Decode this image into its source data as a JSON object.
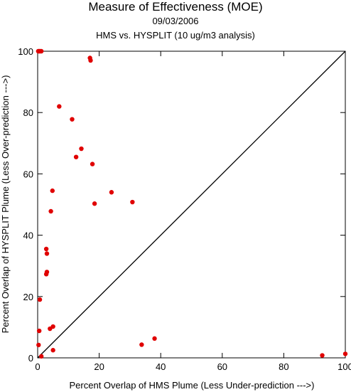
{
  "chart_data": {
    "type": "scatter",
    "title": "Measure of Effectiveness (MOE)",
    "subtitle": "09/03/2006",
    "subtitle2": "HMS vs. HYSPLIT  (10 ug/m3 analysis)",
    "xlabel": "Percent Overlap of HMS Plume (Less Under-prediction --->)",
    "ylabel": "Percent Overlap of HYSPLIT Plume (Less Over-prediction --->)",
    "xlim": [
      0,
      100
    ],
    "ylim": [
      0,
      100
    ],
    "xticks": [
      0,
      20,
      40,
      60,
      80,
      100
    ],
    "yticks": [
      0,
      20,
      40,
      60,
      80,
      100
    ],
    "grid": false,
    "diagonal": true,
    "point_color": "#e00000",
    "points": [
      {
        "x": 0.2,
        "y": 100
      },
      {
        "x": 0.5,
        "y": 100
      },
      {
        "x": 0.8,
        "y": 100
      },
      {
        "x": 1.2,
        "y": 100
      },
      {
        "x": 17.0,
        "y": 97.8
      },
      {
        "x": 17.2,
        "y": 97.0
      },
      {
        "x": 7.0,
        "y": 82.0
      },
      {
        "x": 11.2,
        "y": 77.8
      },
      {
        "x": 14.2,
        "y": 68.2
      },
      {
        "x": 12.5,
        "y": 65.5
      },
      {
        "x": 17.8,
        "y": 63.2
      },
      {
        "x": 4.8,
        "y": 54.5
      },
      {
        "x": 24.0,
        "y": 54.0
      },
      {
        "x": 30.8,
        "y": 50.8
      },
      {
        "x": 18.5,
        "y": 50.3
      },
      {
        "x": 4.3,
        "y": 47.8
      },
      {
        "x": 2.8,
        "y": 35.5
      },
      {
        "x": 3.0,
        "y": 34.0
      },
      {
        "x": 3.0,
        "y": 28.0
      },
      {
        "x": 2.8,
        "y": 27.3
      },
      {
        "x": 0.7,
        "y": 19.0
      },
      {
        "x": 5.0,
        "y": 10.2
      },
      {
        "x": 4.0,
        "y": 9.5
      },
      {
        "x": 0.5,
        "y": 8.8
      },
      {
        "x": 38.0,
        "y": 6.3
      },
      {
        "x": 0.3,
        "y": 4.2
      },
      {
        "x": 33.8,
        "y": 4.3
      },
      {
        "x": 5.0,
        "y": 2.5
      },
      {
        "x": 1.2,
        "y": 0.5
      },
      {
        "x": 92.5,
        "y": 0.8
      },
      {
        "x": 100.0,
        "y": 1.3
      }
    ]
  }
}
